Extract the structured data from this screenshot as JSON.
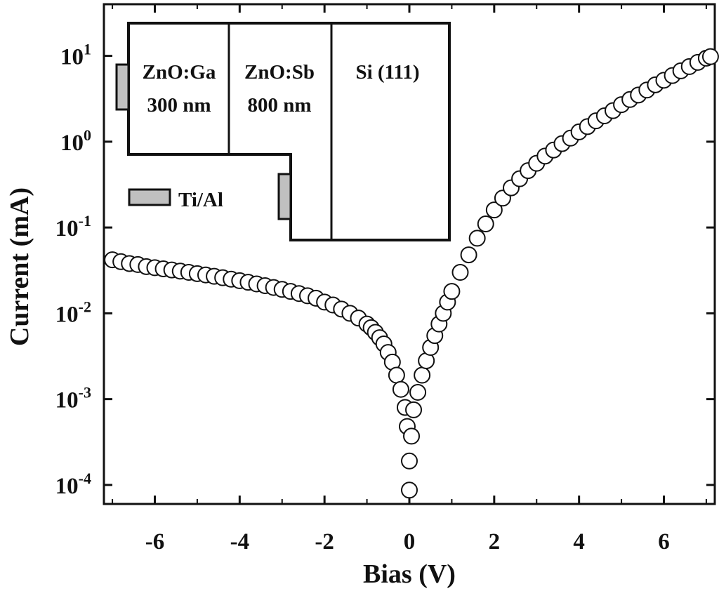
{
  "chart_data": {
    "type": "scatter",
    "title": "",
    "xlabel": "Bias (V)",
    "ylabel": "Current (mA)",
    "xlim": [
      -7.2,
      7.2
    ],
    "ylim": [
      6e-05,
      40
    ],
    "y_scale": "log",
    "grid": false,
    "x_ticks": [
      -6,
      -4,
      -2,
      0,
      2,
      4,
      6
    ],
    "x_tick_labels": [
      "-6",
      "-4",
      "-2",
      "0",
      "2",
      "4",
      "6"
    ],
    "y_ticks": [
      {
        "value": 10,
        "base": "10",
        "exp": "1"
      },
      {
        "value": 1,
        "base": "10",
        "exp": "0"
      },
      {
        "value": 0.1,
        "base": "10",
        "exp": "-1"
      },
      {
        "value": 0.01,
        "base": "10",
        "exp": "-2"
      },
      {
        "value": 0.001,
        "base": "10",
        "exp": "-3"
      },
      {
        "value": 0.0001,
        "base": "10",
        "exp": "-4"
      }
    ],
    "marker": "open-circle",
    "series": [
      {
        "points": [
          [
            -7.0,
            0.042
          ],
          [
            -6.8,
            0.04
          ],
          [
            -6.6,
            0.038
          ],
          [
            -6.4,
            0.037
          ],
          [
            -6.2,
            0.035
          ],
          [
            -6.0,
            0.034
          ],
          [
            -5.8,
            0.033
          ],
          [
            -5.6,
            0.032
          ],
          [
            -5.4,
            0.031
          ],
          [
            -5.2,
            0.03
          ],
          [
            -5.0,
            0.029
          ],
          [
            -4.8,
            0.028
          ],
          [
            -4.6,
            0.027
          ],
          [
            -4.4,
            0.026
          ],
          [
            -4.2,
            0.025
          ],
          [
            -4.0,
            0.024
          ],
          [
            -3.8,
            0.023
          ],
          [
            -3.6,
            0.022
          ],
          [
            -3.4,
            0.021
          ],
          [
            -3.2,
            0.02
          ],
          [
            -3.0,
            0.019
          ],
          [
            -2.8,
            0.018
          ],
          [
            -2.6,
            0.017
          ],
          [
            -2.4,
            0.016
          ],
          [
            -2.2,
            0.015
          ],
          [
            -2.0,
            0.0135
          ],
          [
            -1.8,
            0.0125
          ],
          [
            -1.6,
            0.0112
          ],
          [
            -1.4,
            0.01
          ],
          [
            -1.2,
            0.0088
          ],
          [
            -1.0,
            0.0075
          ],
          [
            -0.9,
            0.0068
          ],
          [
            -0.8,
            0.006
          ],
          [
            -0.7,
            0.0052
          ],
          [
            -0.6,
            0.0044
          ],
          [
            -0.5,
            0.0035
          ],
          [
            -0.4,
            0.0027
          ],
          [
            -0.3,
            0.0019
          ],
          [
            -0.2,
            0.0013
          ],
          [
            -0.1,
            0.0008
          ],
          [
            -0.05,
            0.00048
          ],
          [
            0.0,
            0.00019
          ],
          [
            0.0,
            8.7e-05
          ],
          [
            0.05,
            0.00037
          ],
          [
            0.1,
            0.00075
          ],
          [
            0.2,
            0.0012
          ],
          [
            0.3,
            0.0019
          ],
          [
            0.4,
            0.0028
          ],
          [
            0.5,
            0.004
          ],
          [
            0.6,
            0.0055
          ],
          [
            0.7,
            0.0075
          ],
          [
            0.8,
            0.01
          ],
          [
            0.9,
            0.0135
          ],
          [
            1.0,
            0.018
          ],
          [
            1.2,
            0.03
          ],
          [
            1.4,
            0.048
          ],
          [
            1.6,
            0.075
          ],
          [
            1.8,
            0.11
          ],
          [
            2.0,
            0.16
          ],
          [
            2.2,
            0.22
          ],
          [
            2.4,
            0.29
          ],
          [
            2.6,
            0.37
          ],
          [
            2.8,
            0.46
          ],
          [
            3.0,
            0.56
          ],
          [
            3.2,
            0.68
          ],
          [
            3.4,
            0.8
          ],
          [
            3.6,
            0.95
          ],
          [
            3.8,
            1.1
          ],
          [
            4.0,
            1.3
          ],
          [
            4.2,
            1.5
          ],
          [
            4.4,
            1.75
          ],
          [
            4.6,
            2.0
          ],
          [
            4.8,
            2.3
          ],
          [
            5.0,
            2.7
          ],
          [
            5.2,
            3.1
          ],
          [
            5.4,
            3.5
          ],
          [
            5.6,
            4.0
          ],
          [
            5.8,
            4.6
          ],
          [
            6.0,
            5.2
          ],
          [
            6.2,
            5.9
          ],
          [
            6.4,
            6.7
          ],
          [
            6.6,
            7.5
          ],
          [
            6.8,
            8.4
          ],
          [
            7.0,
            9.4
          ],
          [
            7.1,
            9.8
          ]
        ]
      }
    ],
    "inset": {
      "layers": [
        {
          "name": "ZnO:Ga",
          "thickness": "300 nm"
        },
        {
          "name": "ZnO:Sb",
          "thickness": "800 nm"
        },
        {
          "name": "Si (111)",
          "thickness": ""
        }
      ],
      "legend_label": "Ti/Al",
      "contact_color": "#c0c0c0"
    }
  }
}
